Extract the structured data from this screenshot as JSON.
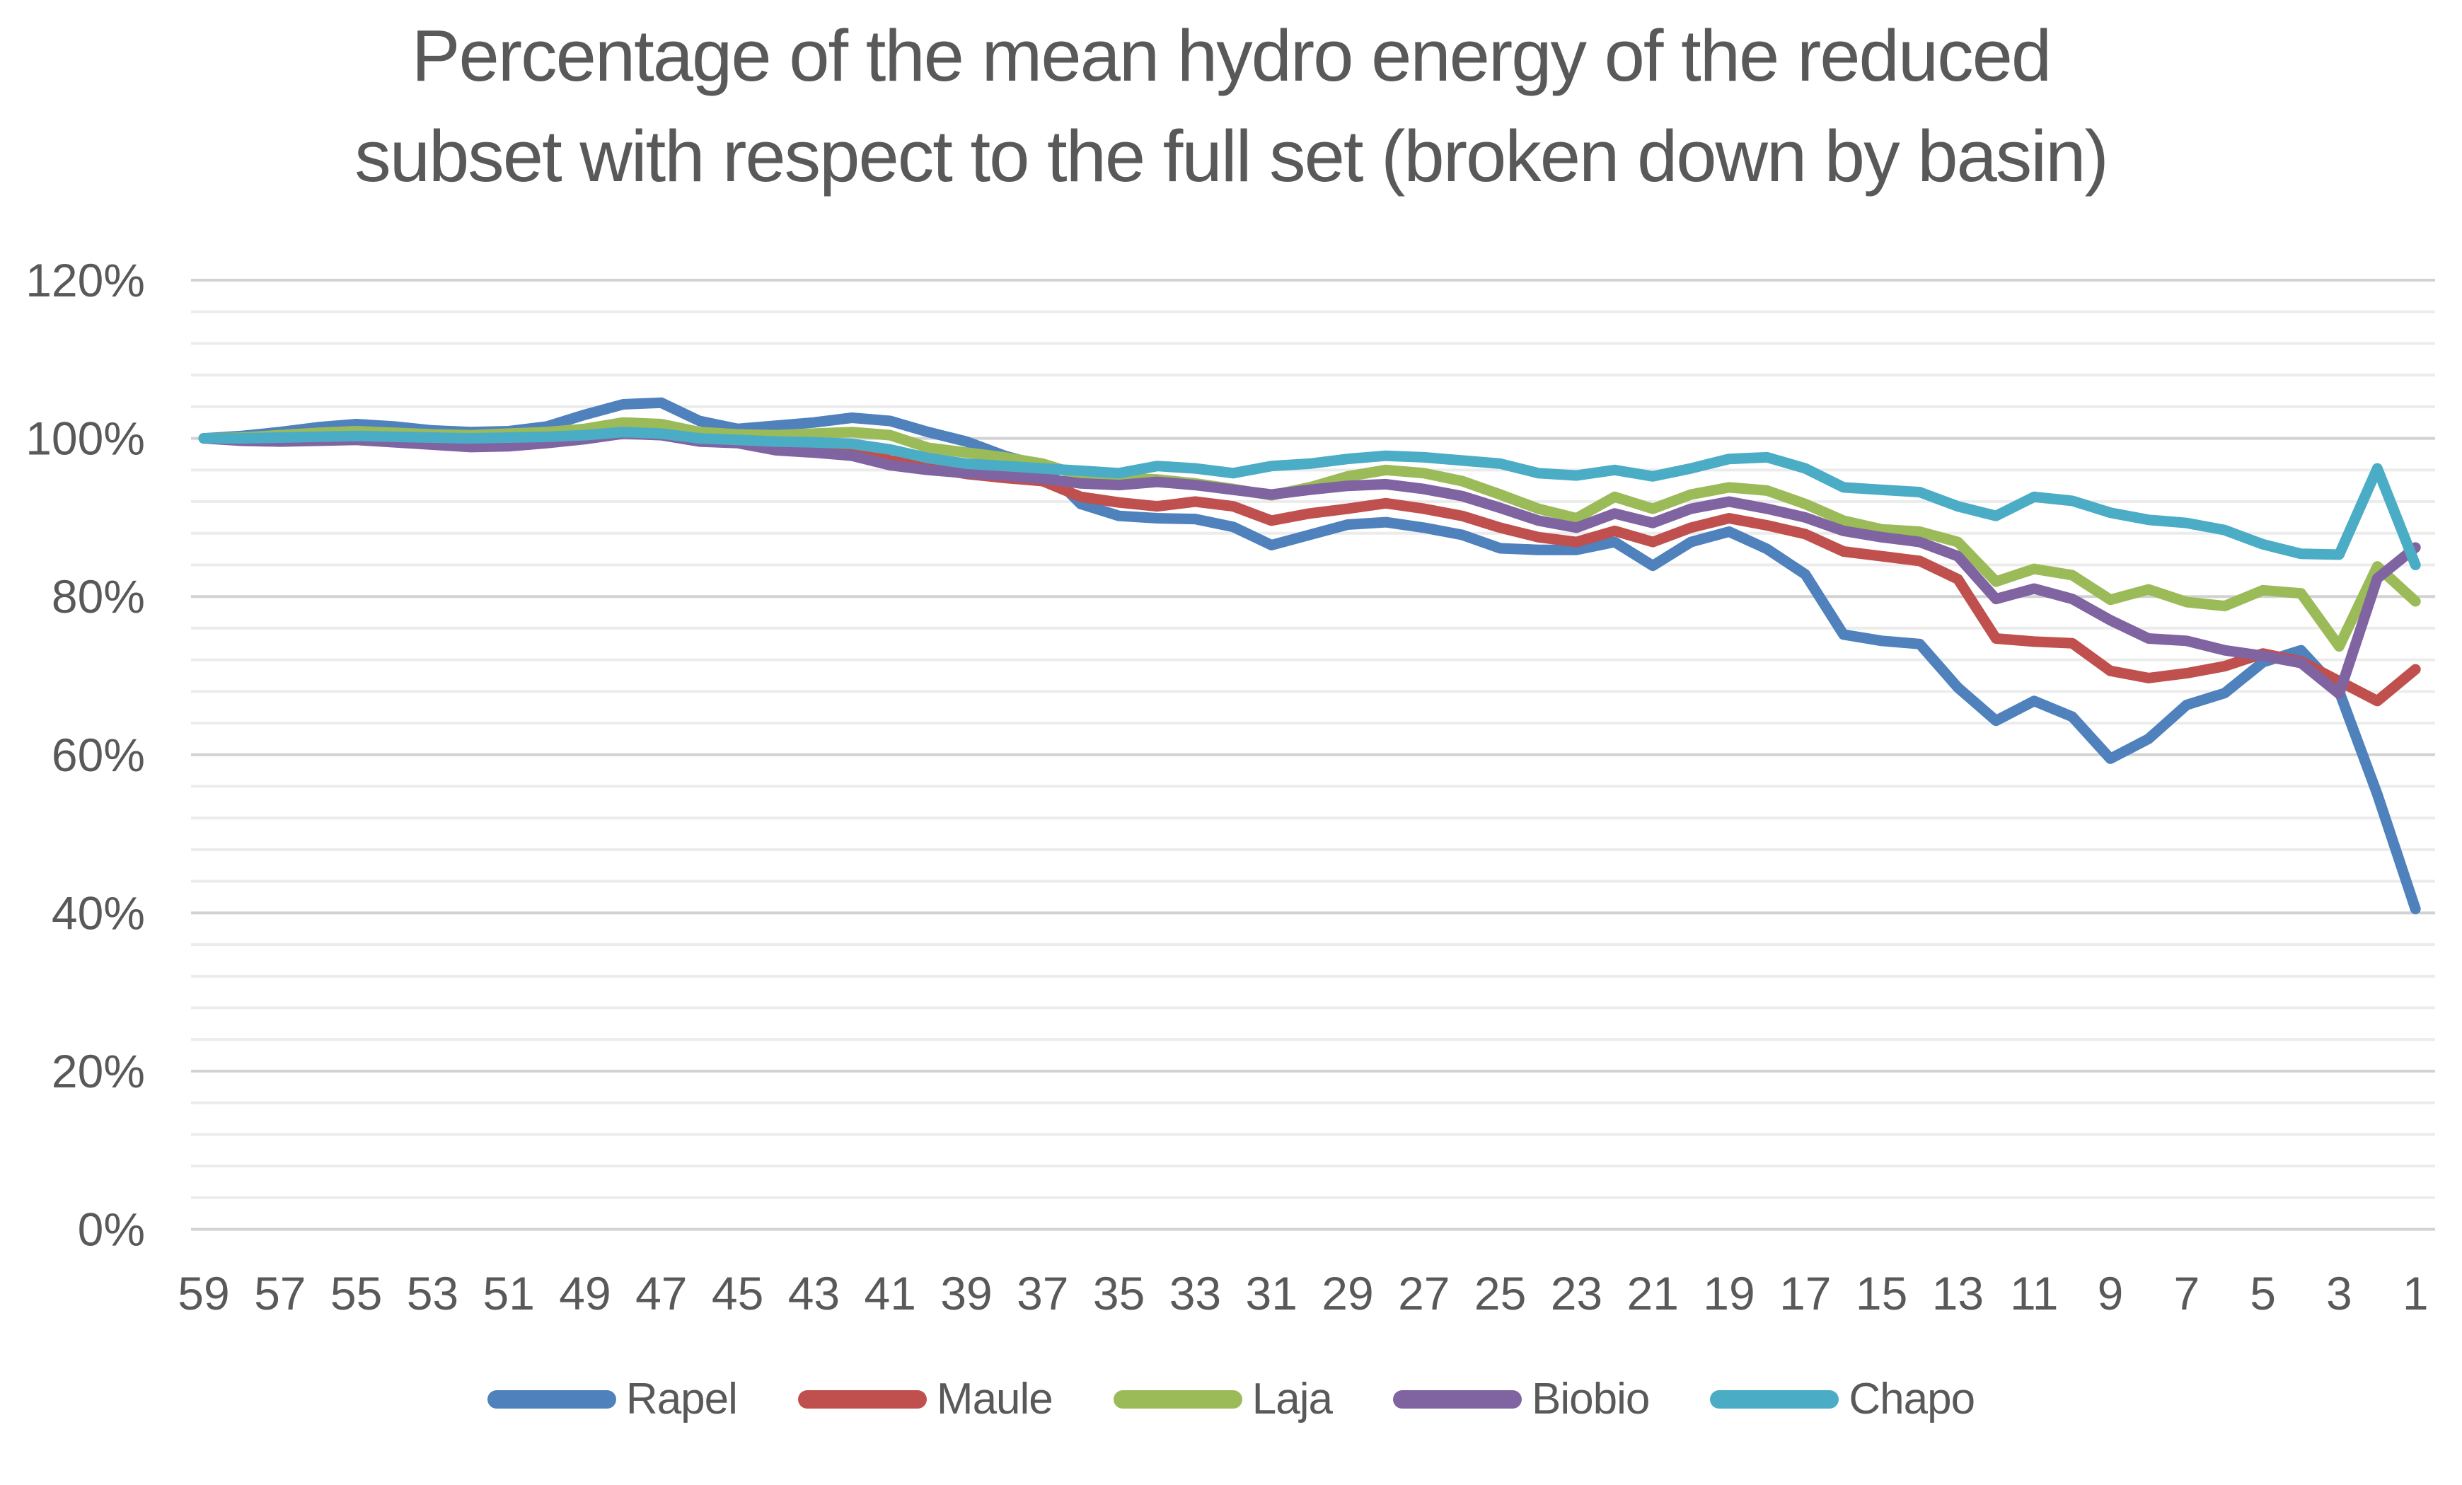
{
  "chart_data": {
    "type": "line",
    "title": "Percentage of the mean hydro energy of the reduced subset with respect to the full set (broken down by basin)",
    "title_lines": [
      "Percentage of the mean hydro energy of the reduced",
      "subset with respect to the full set (broken down by basin)"
    ],
    "title_color": "#595959",
    "axis_label_color": "#595959",
    "gridline_minor_color": "#ececec",
    "gridline_major_color": "#d2d2d2",
    "background_color": "#ffffff",
    "ylim": [
      0,
      120
    ],
    "y_major_unit_pct": 20,
    "y_minor_unit_pct": 4,
    "y_tick_labels": [
      "0%",
      "20%",
      "40%",
      "60%",
      "80%",
      "100%",
      "120%"
    ],
    "x_tick_labels": [
      "59",
      "57",
      "55",
      "53",
      "51",
      "49",
      "47",
      "45",
      "43",
      "41",
      "39",
      "37",
      "35",
      "33",
      "31",
      "29",
      "27",
      "25",
      "23",
      "21",
      "19",
      "17",
      "15",
      "13",
      "11",
      "9",
      "7",
      "5",
      "3",
      "1"
    ],
    "x": [
      59,
      58,
      57,
      56,
      55,
      54,
      53,
      52,
      51,
      50,
      49,
      48,
      47,
      46,
      45,
      44,
      43,
      42,
      41,
      40,
      39,
      38,
      37,
      36,
      35,
      34,
      33,
      32,
      31,
      30,
      29,
      28,
      27,
      26,
      25,
      24,
      23,
      22,
      21,
      20,
      19,
      18,
      17,
      16,
      15,
      14,
      13,
      12,
      11,
      10,
      9,
      8,
      7,
      6,
      5,
      4,
      3,
      2,
      1
    ],
    "grid": "horizontal",
    "legend_position": "bottom",
    "series": [
      {
        "name": "Rapel",
        "color": "#4F81BD",
        "values": [
          100,
          100.3,
          100.8,
          101.4,
          101.8,
          101.5,
          101,
          100.8,
          100.9,
          101.5,
          103,
          104.3,
          104.5,
          102.2,
          101.2,
          101.6,
          102,
          102.6,
          102.2,
          100.8,
          99.6,
          97.8,
          96.5,
          91.7,
          90.2,
          89.9,
          89.8,
          88.8,
          86.5,
          87.8,
          89.1,
          89.4,
          88.7,
          87.8,
          86.1,
          85.9,
          85.9,
          86.9,
          83.9,
          86.9,
          88.2,
          86,
          82.8,
          75.2,
          74.4,
          74,
          68.5,
          64.3,
          66.8,
          64.8,
          59.5,
          62,
          66.3,
          67.8,
          71.7,
          73.2,
          68,
          55,
          40.5
        ]
      },
      {
        "name": "Maule",
        "color": "#C0504D",
        "values": [
          100,
          99.9,
          100,
          100.2,
          100.4,
          100.1,
          99.8,
          99.6,
          99.4,
          99.8,
          100.6,
          101.7,
          101.5,
          100.3,
          100,
          99.7,
          99.4,
          98.7,
          97.2,
          96.3,
          95.5,
          95,
          94.6,
          92.6,
          91.9,
          91.4,
          92,
          91.4,
          89.6,
          90.5,
          91.1,
          91.8,
          91.1,
          90.2,
          88.7,
          87.5,
          86.9,
          88.3,
          86.9,
          88.7,
          89.9,
          89,
          87.9,
          85.7,
          85.1,
          84.5,
          82.2,
          74.7,
          74.3,
          74.1,
          70.6,
          69.7,
          70.3,
          71.2,
          72.8,
          71.8,
          69.3,
          66.8,
          70.8
        ]
      },
      {
        "name": "Laja",
        "color": "#9BBB59",
        "values": [
          100,
          100.1,
          100.4,
          100.7,
          100.9,
          100.7,
          100.5,
          100.4,
          100.6,
          100.8,
          101.2,
          102,
          101.8,
          100.8,
          100.5,
          100.4,
          100.6,
          100.8,
          100.4,
          98.8,
          98.2,
          97.6,
          96.8,
          95.3,
          95,
          94.8,
          94.3,
          93.6,
          92.8,
          93.8,
          95.2,
          96,
          95.6,
          94.6,
          92.9,
          91.1,
          89.9,
          92.6,
          91.1,
          92.9,
          93.8,
          93.4,
          91.7,
          89.6,
          88.5,
          88.2,
          86.9,
          81.9,
          83.5,
          82.7,
          79.6,
          80.9,
          79.3,
          78.8,
          80.8,
          80.4,
          73.7,
          83.8,
          79.4
        ]
      },
      {
        "name": "Biobio",
        "color": "#8064A2",
        "values": [
          100,
          99.7,
          99.6,
          99.7,
          99.8,
          99.5,
          99.2,
          98.9,
          99,
          99.4,
          99.9,
          100.6,
          100.4,
          99.6,
          99.4,
          98.5,
          98.2,
          97.8,
          96.6,
          96,
          95.6,
          95.3,
          94.9,
          94.3,
          94.1,
          94.5,
          94.1,
          93.5,
          92.9,
          93.5,
          94,
          94.2,
          93.6,
          92.7,
          91.2,
          89.6,
          88.7,
          90.5,
          89.3,
          91.1,
          92,
          91.1,
          90,
          88.3,
          87.5,
          86.9,
          85.1,
          79.7,
          81,
          79.7,
          77,
          74.7,
          74.4,
          73.2,
          72.5,
          71.6,
          67.7,
          82.3,
          86.2
        ]
      },
      {
        "name": "Chapo",
        "color": "#4BACC6",
        "values": [
          100,
          100,
          100.1,
          100.2,
          100.3,
          100.2,
          100.1,
          100,
          100.1,
          100.2,
          100.4,
          100.8,
          100.6,
          100,
          99.8,
          99.6,
          99.5,
          99.3,
          98.6,
          97.5,
          96.8,
          96.5,
          96.2,
          95.9,
          95.6,
          96.5,
          96.2,
          95.6,
          96.5,
          96.8,
          97.4,
          97.8,
          97.6,
          97.2,
          96.8,
          95.6,
          95.3,
          96,
          95.2,
          96.2,
          97.4,
          97.6,
          96.2,
          93.8,
          93.5,
          93.2,
          91.4,
          90.2,
          92.6,
          92.1,
          90.6,
          89.7,
          89.3,
          88.4,
          86.6,
          85.4,
          85.3,
          96.2,
          84
        ]
      }
    ]
  }
}
